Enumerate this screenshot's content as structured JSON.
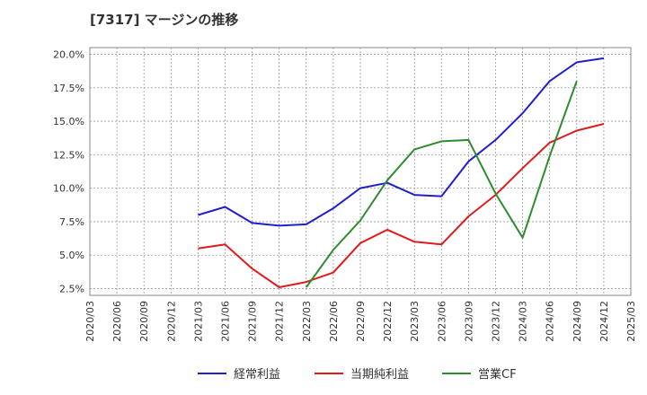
{
  "chart_data": {
    "type": "line",
    "title": "[7317]  マージンの推移",
    "x": [
      "2020/03",
      "2020/06",
      "2020/09",
      "2020/12",
      "2021/03",
      "2021/06",
      "2021/09",
      "2021/12",
      "2022/03",
      "2022/06",
      "2022/09",
      "2022/12",
      "2023/03",
      "2023/06",
      "2023/09",
      "2023/12",
      "2024/03",
      "2024/06",
      "2024/09",
      "2024/12",
      "2025/03"
    ],
    "ylim": [
      2.0,
      20.5
    ],
    "yticks": [
      2.5,
      5.0,
      7.5,
      10.0,
      12.5,
      15.0,
      17.5,
      20.0
    ],
    "ytick_labels": [
      "2.5%",
      "5.0%",
      "7.5%",
      "10.0%",
      "12.5%",
      "15.0%",
      "17.5%",
      "20.0%"
    ],
    "grid": true,
    "legend_position": "bottom",
    "series": [
      {
        "name": "経常利益",
        "color": "#1f1fcc",
        "values": [
          null,
          null,
          null,
          null,
          8.0,
          8.6,
          7.4,
          7.2,
          7.3,
          8.5,
          10.0,
          10.4,
          9.5,
          9.4,
          12.0,
          13.6,
          15.6,
          18.0,
          19.4,
          19.7,
          null
        ]
      },
      {
        "name": "当期純利益",
        "color": "#e01b1b",
        "values": [
          null,
          null,
          null,
          null,
          5.5,
          5.8,
          4.0,
          2.6,
          3.0,
          3.7,
          5.9,
          6.9,
          6.0,
          5.8,
          7.9,
          9.5,
          11.5,
          13.4,
          14.3,
          14.8,
          null
        ]
      },
      {
        "name": "営業CF",
        "color": "#2e8b2e",
        "values": [
          null,
          null,
          null,
          null,
          null,
          null,
          null,
          null,
          2.6,
          5.4,
          7.6,
          10.6,
          12.9,
          13.5,
          13.6,
          9.6,
          6.3,
          12.4,
          18.0,
          null,
          null
        ]
      }
    ]
  }
}
